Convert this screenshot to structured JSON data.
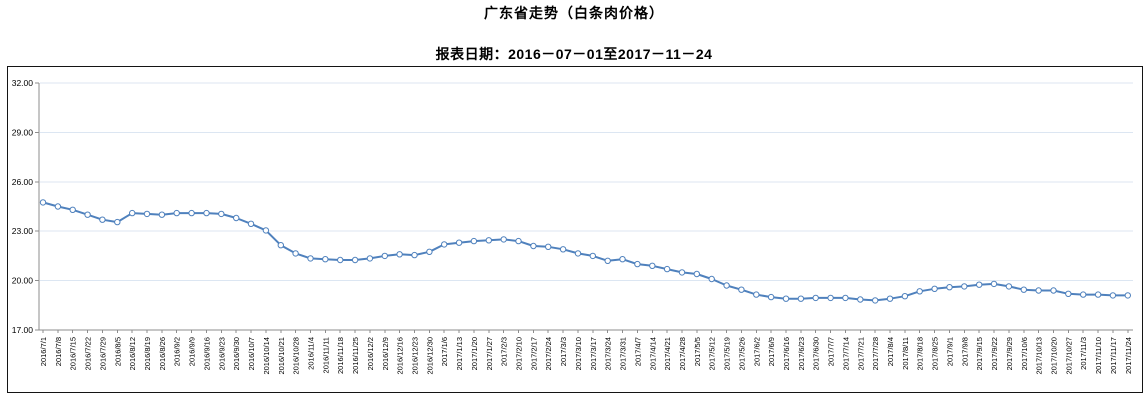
{
  "header": {
    "title": "广东省走势（白条肉价格）",
    "subtitle": "报表日期：2016－07－01至2017－11－24"
  },
  "chart_data": {
    "type": "line",
    "title": "广东省走势（白条肉价格）",
    "series_name": "白条肉价格",
    "x": [
      "2016/7/1",
      "2016/7/8",
      "2016/7/15",
      "2016/7/22",
      "2016/7/29",
      "2016/8/5",
      "2016/8/12",
      "2016/8/19",
      "2016/8/26",
      "2016/9/2",
      "2016/9/9",
      "2016/9/16",
      "2016/9/23",
      "2016/9/30",
      "2016/10/7",
      "2016/10/14",
      "2016/10/21",
      "2016/10/28",
      "2016/11/4",
      "2016/11/11",
      "2016/11/18",
      "2016/11/25",
      "2016/12/2",
      "2016/12/9",
      "2016/12/16",
      "2016/12/23",
      "2016/12/30",
      "2017/1/6",
      "2017/1/13",
      "2017/1/20",
      "2017/1/27",
      "2017/2/3",
      "2017/2/10",
      "2017/2/17",
      "2017/2/24",
      "2017/3/3",
      "2017/3/10",
      "2017/3/17",
      "2017/3/24",
      "2017/3/31",
      "2017/4/7",
      "2017/4/14",
      "2017/4/21",
      "2017/4/28",
      "2017/5/5",
      "2017/5/12",
      "2017/5/19",
      "2017/5/26",
      "2017/6/2",
      "2017/6/9",
      "2017/6/16",
      "2017/6/23",
      "2017/6/30",
      "2017/7/7",
      "2017/7/14",
      "2017/7/21",
      "2017/7/28",
      "2017/8/4",
      "2017/8/11",
      "2017/8/18",
      "2017/8/25",
      "2017/9/1",
      "2017/9/8",
      "2017/9/15",
      "2017/9/22",
      "2017/9/29",
      "2017/10/6",
      "2017/10/13",
      "2017/10/20",
      "2017/10/27",
      "2017/11/3",
      "2017/11/10",
      "2017/11/17",
      "2017/11/24"
    ],
    "values": [
      24.75,
      24.5,
      24.3,
      24.0,
      23.7,
      23.55,
      24.1,
      24.05,
      24.0,
      24.1,
      24.1,
      24.1,
      24.05,
      23.8,
      23.45,
      23.05,
      22.15,
      21.65,
      21.35,
      21.3,
      21.25,
      21.25,
      21.35,
      21.5,
      21.6,
      21.55,
      21.75,
      22.2,
      22.3,
      22.4,
      22.45,
      22.5,
      22.4,
      22.1,
      22.05,
      21.9,
      21.65,
      21.5,
      21.2,
      21.3,
      21.0,
      20.9,
      20.7,
      20.5,
      20.4,
      20.1,
      19.7,
      19.45,
      19.15,
      19.0,
      18.9,
      18.9,
      18.95,
      18.95,
      18.95,
      18.85,
      18.8,
      18.9,
      19.05,
      19.35,
      19.5,
      19.6,
      19.65,
      19.75,
      19.8,
      19.65,
      19.45,
      19.4,
      19.4,
      19.2,
      19.15,
      19.15,
      19.1,
      19.1
    ],
    "xlabel": "",
    "ylabel": "",
    "ylim": [
      17,
      32
    ],
    "ytick_interval": 3,
    "yticks": [
      "17.00",
      "20.00",
      "23.00",
      "26.00",
      "29.00",
      "32.00"
    ],
    "grid": true,
    "legend": "none",
    "colors": {
      "line": "#4f81bd",
      "marker_fill": "#ffffff",
      "gridline": "#dce6f2",
      "axis": "#8c8c8c",
      "text": "#000000"
    }
  }
}
